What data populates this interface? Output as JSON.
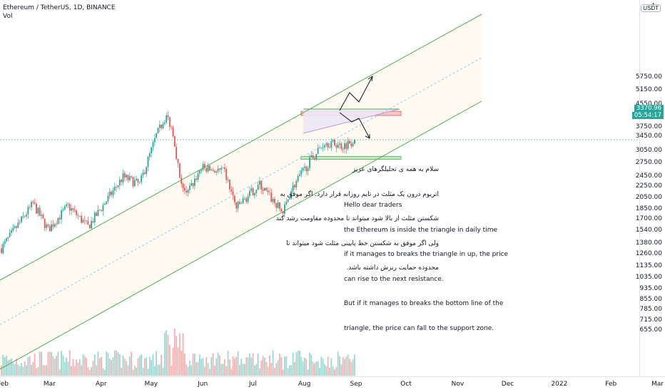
{
  "header": {
    "symbol_line": "Ethereum / TetherUS, 1D, BINANCE",
    "indicator": "Vol",
    "currency_badge": "USDT",
    "alert_icon": "bell-icon"
  },
  "price_tag": {
    "price": "3370.96",
    "countdown": "05:54:17",
    "color": "#26a69a"
  },
  "notes": {
    "persian": [
      "سلام به همه ی تحلیلگرهای عزیز",
      "اتریوم درون یک مثلث در تایم روزانه قرار دارد. اگر موفق به",
      "شکستن مثلث از بالا شود میتواند تا محدوده مقاومت رشد کند",
      "ولی اگر موفق به شکستن خط پایینی مثلث شود میتواند تا",
      "محدوده حمایت ریزش داشته باشد."
    ],
    "english": [
      "Hello dear traders",
      "the Ethereum is inside the triangle in daily time",
      "if it manages to breaks the triangle in up, the price",
      "can rise to the next resistance.",
      "But if it manages to breaks the bottom line of the",
      "triangle, the price can fall to the support zone."
    ]
  },
  "colors": {
    "up": "#26a69a",
    "down": "#ef5350",
    "channel": "#4caf50",
    "resistance_zone": "#f8c6c6",
    "support_zone": "#c8e6c9",
    "triangle_fill": "#ede7f6"
  },
  "chart_data": {
    "type": "candlestick",
    "y_axis": {
      "scale": "log",
      "ticks": [
        "5750.00",
        "5150.00",
        "4550.00",
        "4150.00",
        "3750.00",
        "3450.00",
        "3050.00",
        "2750.00",
        "2450.00",
        "2250.00",
        "2050.00",
        "1850.00",
        "1700.00",
        "1540.00",
        "1380.00",
        "1260.00",
        "1135.00",
        "1035.00",
        "935.00",
        "855.00",
        "785.00",
        "715.00",
        "655.00"
      ],
      "tick_values": [
        5750,
        5150,
        4550,
        4150,
        3750,
        3450,
        3050,
        2750,
        2450,
        2250,
        2050,
        1850,
        1700,
        1540,
        1380,
        1260,
        1135,
        1035,
        935,
        855,
        785,
        715,
        655
      ]
    },
    "x_axis": {
      "labels": [
        "Feb",
        "Mar",
        "Apr",
        "May",
        "Jun",
        "Jul",
        "Aug",
        "Sep",
        "Oct",
        "Nov",
        "Dec",
        "2022",
        "Feb",
        "Mar"
      ]
    },
    "ohlc_keypoints": [
      {
        "date": "2021-02-01",
        "close": 1330
      },
      {
        "date": "2021-02-20",
        "close": 1950
      },
      {
        "date": "2021-03-01",
        "close": 1560
      },
      {
        "date": "2021-03-13",
        "close": 1910
      },
      {
        "date": "2021-03-25",
        "close": 1600
      },
      {
        "date": "2021-04-15",
        "close": 2450
      },
      {
        "date": "2021-04-25",
        "close": 2300
      },
      {
        "date": "2021-05-05",
        "close": 3500
      },
      {
        "date": "2021-05-11",
        "close": 4150
      },
      {
        "date": "2021-05-15",
        "close": 3600
      },
      {
        "date": "2021-05-19",
        "close": 2450
      },
      {
        "date": "2021-05-23",
        "close": 2100
      },
      {
        "date": "2021-06-01",
        "close": 2650
      },
      {
        "date": "2021-06-15",
        "close": 2550
      },
      {
        "date": "2021-06-22",
        "close": 1880
      },
      {
        "date": "2021-07-06",
        "close": 2300
      },
      {
        "date": "2021-07-20",
        "close": 1800
      },
      {
        "date": "2021-07-25",
        "close": 2200
      },
      {
        "date": "2021-08-05",
        "close": 2800
      },
      {
        "date": "2021-08-14",
        "close": 3300
      },
      {
        "date": "2021-08-25",
        "close": 3200
      },
      {
        "date": "2021-09-01",
        "close": 3370.96
      }
    ],
    "annotations": {
      "resistance_zone": [
        4150,
        4300
      ],
      "support_zone": [
        2850,
        2920
      ],
      "current_price": 3370.96
    }
  }
}
